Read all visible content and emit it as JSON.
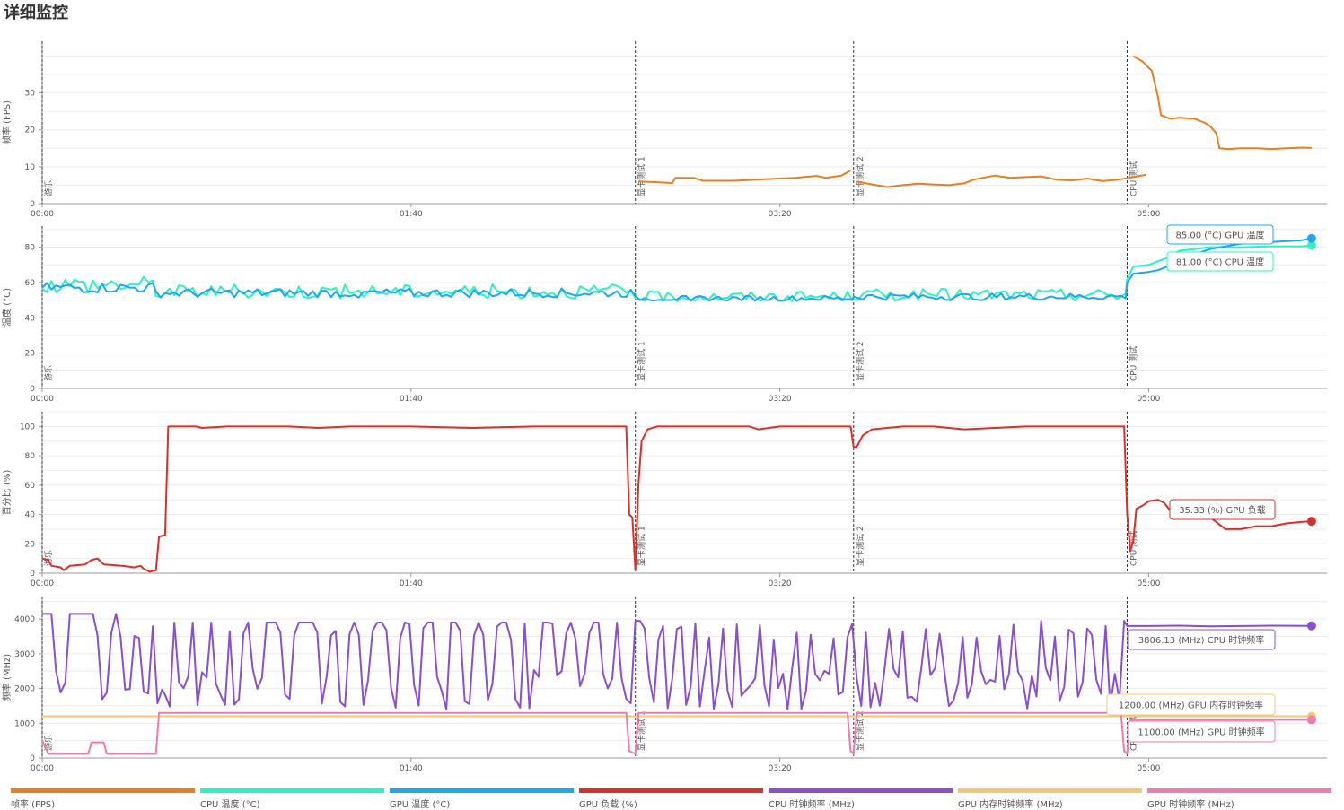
{
  "page": {
    "title": "详细监控"
  },
  "markers": [
    {
      "label": "游乐",
      "t": 0
    },
    {
      "label": "显卡测试 1",
      "t": 193
    },
    {
      "label": "显卡测试 2",
      "t": 264
    },
    {
      "label": "CPU 测试",
      "t": 353
    }
  ],
  "legend": [
    {
      "label": "帧率 (FPS)",
      "color": "#e67e22"
    },
    {
      "label": "CPU 温度 (°C)",
      "color": "#2cf2c2"
    },
    {
      "label": "GPU 温度 (°C)",
      "color": "#1ea7f0"
    },
    {
      "label": "GPU 负载 (%)",
      "color": "#d9302c"
    },
    {
      "label": "CPU 时钟频率 (MHz)",
      "color": "#8a4fcf"
    },
    {
      "label": "GPU 内存时钟频率 (MHz)",
      "color": "#f0c878"
    },
    {
      "label": "GPU 时钟频率 (MHz)",
      "color": "#ef7bb0"
    }
  ],
  "chart_data": [
    {
      "type": "line",
      "ylabel": "帧率 (FPS)",
      "xlim": [
        0,
        418
      ],
      "ylim": [
        0,
        44
      ],
      "yticks": [
        0,
        10,
        20,
        30
      ],
      "xticks": [
        {
          "v": 0,
          "label": "00:00"
        },
        {
          "v": 120,
          "label": "01:40"
        },
        {
          "v": 240,
          "label": "03:20"
        },
        {
          "v": 360,
          "label": "05:00"
        }
      ],
      "series": [
        {
          "name": "帧率 (FPS)",
          "color": "#e67e22",
          "segments": [
            [
              [
                194,
                6
              ],
              [
                200,
                5.8
              ],
              [
                205,
                5.6
              ],
              [
                206,
                7
              ],
              [
                212,
                7
              ],
              [
                215,
                6.2
              ],
              [
                225,
                6.2
              ],
              [
                235,
                6.6
              ],
              [
                245,
                7
              ],
              [
                252,
                7.5
              ],
              [
                255,
                7
              ],
              [
                260,
                7.6
              ],
              [
                262,
                8.5
              ],
              [
                263,
                9
              ]
            ],
            [
              [
                265,
                6
              ],
              [
                270,
                5.2
              ],
              [
                275,
                4.5
              ],
              [
                280,
                5
              ],
              [
                285,
                5.4
              ],
              [
                290,
                5.2
              ],
              [
                295,
                5
              ],
              [
                300,
                5.5
              ],
              [
                303,
                6.5
              ],
              [
                306,
                7
              ],
              [
                310,
                7.6
              ],
              [
                315,
                7
              ],
              [
                320,
                7.2
              ],
              [
                325,
                7.4
              ],
              [
                330,
                6.5
              ],
              [
                335,
                6.3
              ],
              [
                340,
                6.8
              ],
              [
                345,
                6.1
              ],
              [
                350,
                6.5
              ],
              [
                355,
                7.2
              ],
              [
                357,
                7.5
              ],
              [
                359,
                7.8
              ]
            ],
            [
              [
                355,
                40
              ],
              [
                358,
                38.5
              ],
              [
                361,
                36
              ],
              [
                363,
                29
              ],
              [
                364,
                24
              ],
              [
                367,
                23
              ],
              [
                370,
                23.3
              ],
              [
                375,
                23
              ],
              [
                378,
                22
              ],
              [
                380,
                21
              ],
              [
                382,
                19
              ],
              [
                383,
                15
              ],
              [
                386,
                14.8
              ],
              [
                390,
                15
              ],
              [
                395,
                15
              ],
              [
                400,
                14.8
              ],
              [
                405,
                15
              ],
              [
                410,
                15.2
              ],
              [
                413,
                15.1
              ]
            ]
          ]
        }
      ]
    },
    {
      "type": "line",
      "ylabel": "温度 (°C)",
      "xlim": [
        0,
        418
      ],
      "ylim": [
        0,
        92
      ],
      "yticks": [
        0,
        20,
        40,
        60,
        80
      ],
      "xticks": [
        {
          "v": 0,
          "label": "00:00"
        },
        {
          "v": 120,
          "label": "01:40"
        },
        {
          "v": 240,
          "label": "03:20"
        },
        {
          "v": 360,
          "label": "05:00"
        }
      ],
      "series": [
        {
          "name": "CPU 温度 (°C)",
          "color": "#2cf2c2",
          "last_label": "81.00 (°C) CPU 温度",
          "last_value": 81,
          "ranges": [
            {
              "from": 0,
              "to": 37,
              "base": 59,
              "amp": 5
            },
            {
              "from": 37,
              "to": 193,
              "base": 55,
              "amp": 4
            },
            {
              "from": 193,
              "to": 264,
              "base": 52,
              "amp": 3
            },
            {
              "from": 264,
              "to": 353,
              "base": 53,
              "amp": 3.5
            }
          ],
          "tail": [
            [
              353,
              62
            ],
            [
              355,
              69
            ],
            [
              360,
              70
            ],
            [
              363,
              72
            ],
            [
              366,
              74
            ],
            [
              370,
              78
            ],
            [
              375,
              79
            ],
            [
              380,
              80
            ],
            [
              390,
              80
            ],
            [
              400,
              80.5
            ],
            [
              410,
              80.5
            ],
            [
              413,
              81
            ]
          ]
        },
        {
          "name": "GPU 温度 (°C)",
          "color": "#1ea7f0",
          "last_label": "85.00 (°C) GPU 温度",
          "last_value": 85,
          "ranges": [
            {
              "from": 0,
              "to": 37,
              "base": 57,
              "amp": 3
            },
            {
              "from": 37,
              "to": 193,
              "base": 54,
              "amp": 2.5
            },
            {
              "from": 193,
              "to": 264,
              "base": 51,
              "amp": 1.5
            },
            {
              "from": 264,
              "to": 353,
              "base": 52,
              "amp": 2
            }
          ],
          "tail": [
            [
              353,
              60
            ],
            [
              355,
              65
            ],
            [
              360,
              66
            ],
            [
              363,
              67
            ],
            [
              366,
              69
            ],
            [
              370,
              73
            ],
            [
              375,
              76
            ],
            [
              380,
              79
            ],
            [
              390,
              82
            ],
            [
              400,
              83
            ],
            [
              410,
              84
            ],
            [
              413,
              85
            ]
          ]
        }
      ]
    },
    {
      "type": "line",
      "ylabel": "百分比 (%)",
      "xlim": [
        0,
        418
      ],
      "ylim": [
        0,
        110
      ],
      "yticks": [
        0,
        20,
        40,
        60,
        80,
        100
      ],
      "xticks": [
        {
          "v": 0,
          "label": "00:00"
        },
        {
          "v": 120,
          "label": "01:40"
        },
        {
          "v": 240,
          "label": "03:20"
        },
        {
          "v": 360,
          "label": "05:00"
        }
      ],
      "series": [
        {
          "name": "GPU 负载 (%)",
          "color": "#d9302c",
          "last_label": "35.33 (%) GPU 负载",
          "last_value": 35.33,
          "points": [
            [
              0,
              10
            ],
            [
              2,
              9
            ],
            [
              3,
              5
            ],
            [
              6,
              4
            ],
            [
              7,
              2
            ],
            [
              9,
              5
            ],
            [
              14,
              6
            ],
            [
              16,
              9
            ],
            [
              18,
              10
            ],
            [
              20,
              6
            ],
            [
              26,
              5
            ],
            [
              30,
              4
            ],
            [
              32,
              5
            ],
            [
              33,
              3
            ],
            [
              35,
              1
            ],
            [
              37,
              2
            ],
            [
              38,
              25
            ],
            [
              40,
              26
            ],
            [
              41,
              100
            ],
            [
              50,
              100
            ],
            [
              52,
              99
            ],
            [
              60,
              100
            ],
            [
              80,
              100
            ],
            [
              90,
              99
            ],
            [
              100,
              100
            ],
            [
              120,
              100
            ],
            [
              140,
              99
            ],
            [
              160,
              100
            ],
            [
              180,
              100
            ],
            [
              190,
              100
            ],
            [
              191,
              40
            ],
            [
              192,
              38
            ],
            [
              193,
              2
            ],
            [
              194,
              60
            ],
            [
              195,
              90
            ],
            [
              197,
              98
            ],
            [
              200,
              100
            ],
            [
              230,
              100
            ],
            [
              233,
              98
            ],
            [
              240,
              100
            ],
            [
              255,
              100
            ],
            [
              263,
              100
            ],
            [
              264,
              86
            ],
            [
              265,
              86
            ],
            [
              267,
              94
            ],
            [
              270,
              98
            ],
            [
              280,
              100
            ],
            [
              290,
              100
            ],
            [
              300,
              98
            ],
            [
              320,
              100
            ],
            [
              340,
              100
            ],
            [
              350,
              100
            ],
            [
              352,
              100
            ],
            [
              353,
              40
            ],
            [
              354,
              15
            ],
            [
              355,
              22
            ],
            [
              356,
              44
            ],
            [
              358,
              46
            ],
            [
              360,
              49
            ],
            [
              363,
              50
            ],
            [
              365,
              48
            ],
            [
              368,
              40
            ],
            [
              372,
              38
            ],
            [
              380,
              38
            ],
            [
              385,
              30
            ],
            [
              390,
              30
            ],
            [
              395,
              32
            ],
            [
              400,
              32
            ],
            [
              405,
              34
            ],
            [
              410,
              35
            ],
            [
              413,
              35.33
            ]
          ]
        }
      ]
    },
    {
      "type": "line",
      "ylabel": "频率 (MHz)",
      "xlim": [
        0,
        418
      ],
      "ylim": [
        0,
        4650
      ],
      "yticks": [
        0,
        1000,
        2000,
        3000,
        4000
      ],
      "xticks": [
        {
          "v": 0,
          "label": "00:00"
        },
        {
          "v": 120,
          "label": "01:40"
        },
        {
          "v": 240,
          "label": "03:20"
        },
        {
          "v": 360,
          "label": "05:00"
        }
      ],
      "series": [
        {
          "name": "CPU 时钟频率 (MHz)",
          "color": "#8a4fcf",
          "last_label": "3806.13 (MHz) CPU 时钟频率",
          "last_value": 3806.13,
          "ranges": [
            {
              "from": 0,
              "to": 40,
              "base": 4150,
              "dips": [
                6,
                20,
                28,
                34,
                38
              ]
            },
            {
              "from": 40,
              "to": 193,
              "base": 3900,
              "dips": [
                40,
                46,
                52,
                58,
                63,
                70,
                80,
                92,
                98,
                105,
                114,
                122,
                130,
                138,
                146,
                155,
                160,
                168,
                176,
                184,
                190
              ]
            },
            {
              "from": 193,
              "to": 353,
              "base": 3950,
              "dips": [
                198,
                204,
                210,
                215,
                219,
                224,
                228,
                232,
                236,
                240,
                244,
                248,
                252,
                256,
                260,
                266,
                270,
                274,
                278,
                282,
                286,
                290,
                294,
                298,
                302,
                306,
                310,
                314,
                318,
                322,
                328,
                332,
                338,
                344,
                349
              ]
            }
          ],
          "tail": [
            [
              353,
              3800
            ],
            [
              360,
              3800
            ],
            [
              370,
              3810
            ],
            [
              380,
              3790
            ],
            [
              390,
              3800
            ],
            [
              400,
              3810
            ],
            [
              413,
              3806.13
            ]
          ]
        },
        {
          "name": "GPU 内存时钟频率 (MHz)",
          "color": "#f0c878",
          "last_label": "1200.00 (MHz) GPU 内存时钟频率",
          "last_value": 1200,
          "points": [
            [
              0,
              1200
            ],
            [
              413,
              1200
            ]
          ]
        },
        {
          "name": "GPU 时钟频率 (MHz)",
          "color": "#ef7bb0",
          "last_label": "1100.00 (MHz) GPU 时钟频率",
          "last_value": 1100,
          "points": [
            [
              0,
              500
            ],
            [
              2,
              120
            ],
            [
              15,
              120
            ],
            [
              16,
              450
            ],
            [
              20,
              450
            ],
            [
              21,
              120
            ],
            [
              37,
              120
            ],
            [
              38,
              1300
            ],
            [
              190,
              1300
            ],
            [
              191,
              200
            ],
            [
              193,
              120
            ],
            [
              194,
              1300
            ],
            [
              262,
              1300
            ],
            [
              263,
              200
            ],
            [
              264,
              120
            ],
            [
              265,
              1300
            ],
            [
              351,
              1300
            ],
            [
              352,
              200
            ],
            [
              353,
              120
            ],
            [
              354,
              1100
            ],
            [
              413,
              1100
            ]
          ]
        }
      ]
    }
  ]
}
